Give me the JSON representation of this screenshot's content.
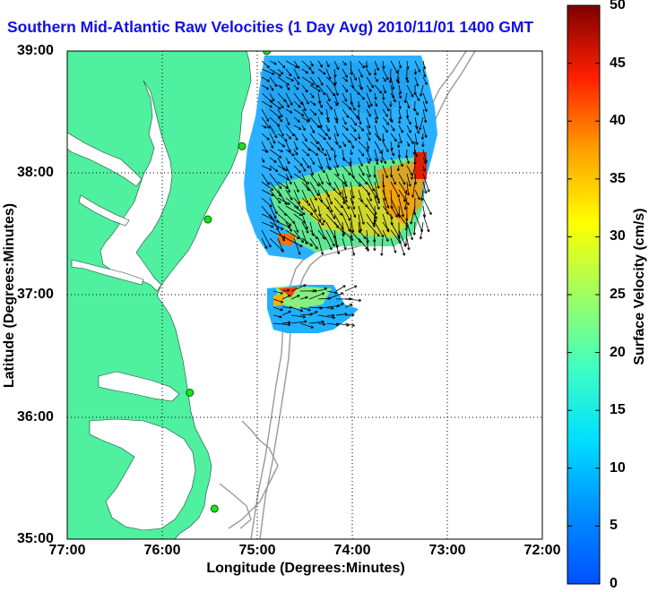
{
  "map": {
    "title": "Southern Mid-Atlantic Raw Velocities (1 Day Avg) 2010/11/01 1400 GMT",
    "xlabel": "Longitude (Degrees:Minutes)",
    "ylabel": "Latitude (Degrees:Minutes)",
    "x_ticks": [
      "77:00",
      "76:00",
      "75:00",
      "74:00",
      "73:00",
      "72:00"
    ],
    "y_ticks": [
      "39:00",
      "38:00",
      "37:00",
      "36:00",
      "35:00"
    ],
    "lon_range": [
      -77,
      -72
    ],
    "lat_range": [
      35,
      39
    ],
    "land_color": "#4ff0a0",
    "grid": "dotted",
    "stations": [
      {
        "name": "station-1",
        "lon": -74.9,
        "lat": 39.0
      },
      {
        "name": "station-2",
        "lon": -75.16,
        "lat": 38.22
      },
      {
        "name": "station-3",
        "lon": -75.52,
        "lat": 37.62
      },
      {
        "name": "station-4",
        "lon": -75.71,
        "lat": 36.2
      },
      {
        "name": "station-5",
        "lon": -75.45,
        "lat": 35.25
      }
    ]
  },
  "colorbar": {
    "label": "Surface Velocity (cm/s)",
    "ticks": [
      "0",
      "5",
      "10",
      "15",
      "20",
      "25",
      "30",
      "35",
      "40",
      "45",
      "50"
    ],
    "range": [
      0,
      50
    ],
    "colormap": "jet"
  }
}
